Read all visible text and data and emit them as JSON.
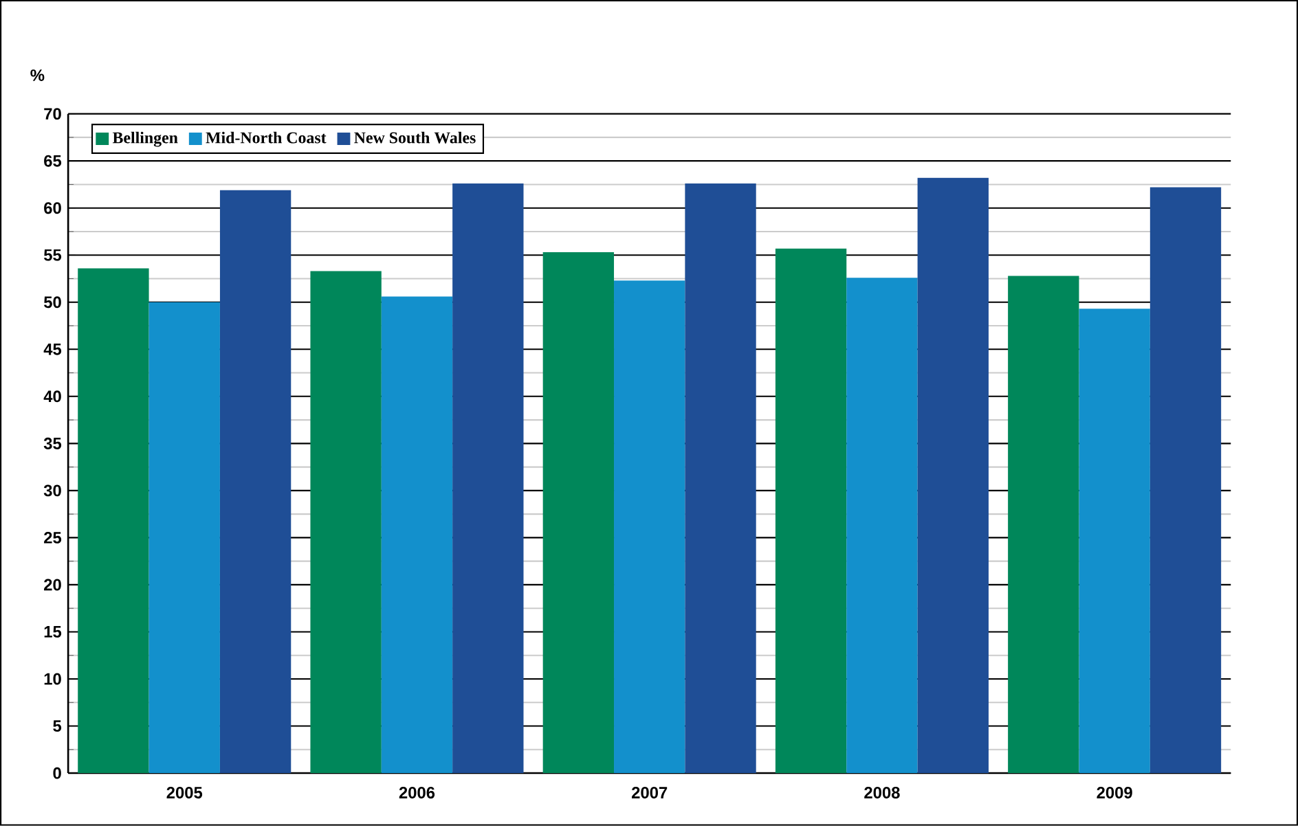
{
  "chart_data": {
    "type": "bar",
    "ylabel": "%",
    "categories": [
      "2005",
      "2006",
      "2007",
      "2008",
      "2009"
    ],
    "series": [
      {
        "name": "Bellingen",
        "color": "#00875a",
        "values": [
          53.6,
          53.3,
          55.3,
          55.7,
          52.8
        ]
      },
      {
        "name": "Mid-North Coast",
        "color": "#1390cc",
        "values": [
          50.0,
          50.6,
          52.3,
          52.6,
          49.3
        ]
      },
      {
        "name": "New South Wales",
        "color": "#1f4e96",
        "values": [
          61.9,
          62.6,
          62.6,
          63.2,
          62.2
        ]
      }
    ],
    "ylim": [
      0,
      70
    ],
    "yticks": [
      0,
      5,
      10,
      15,
      20,
      25,
      30,
      35,
      40,
      45,
      50,
      55,
      60,
      65,
      70
    ],
    "grid": "y",
    "legend": "top left"
  }
}
